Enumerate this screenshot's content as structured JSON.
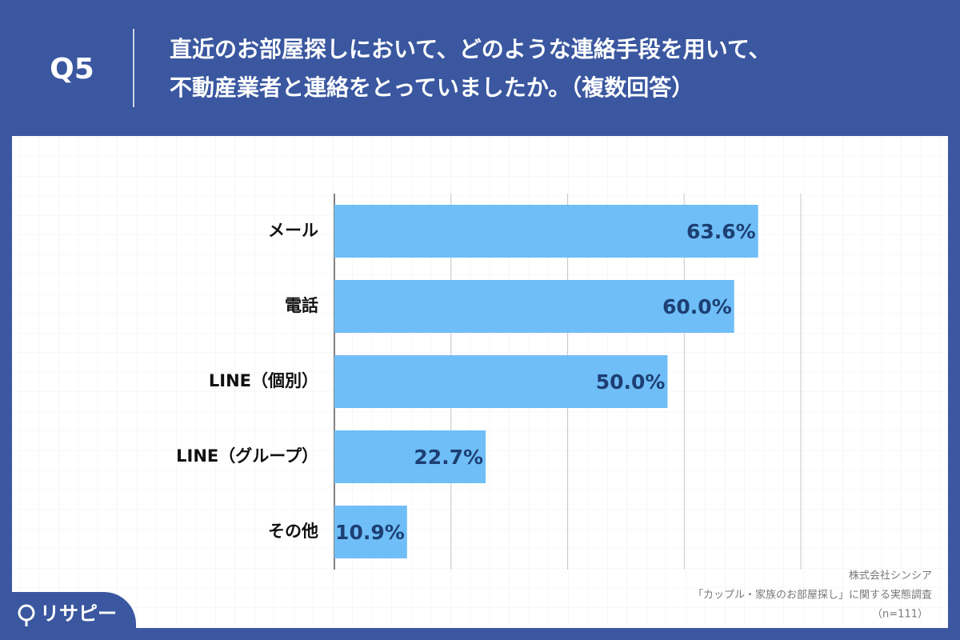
{
  "header": {
    "number": "Q5",
    "question_lines": [
      "直近のお部屋探しにおいて、どのような連絡手段を用いて、",
      "不動産業者と連絡をとっていましたか。（複数回答）"
    ]
  },
  "chart_data": {
    "type": "bar",
    "orientation": "horizontal",
    "categories": [
      "メール",
      "電話",
      "LINE（個別）",
      "LINE（グループ）",
      "その他"
    ],
    "values": [
      63.6,
      60.0,
      50.0,
      22.7,
      10.9
    ],
    "value_labels": [
      "63.6%",
      "60.0%",
      "50.0%",
      "22.7%",
      "10.9%"
    ],
    "color": "#6fbef7",
    "xlim": [
      0,
      70
    ],
    "xticks": [
      0,
      17.5,
      35,
      52.5,
      70
    ],
    "grid": true
  },
  "source": [
    "株式会社シンシア",
    "「カップル・家族のお部屋探し」に関する実態調査",
    "（n=111）"
  ],
  "logo": "リサピー"
}
